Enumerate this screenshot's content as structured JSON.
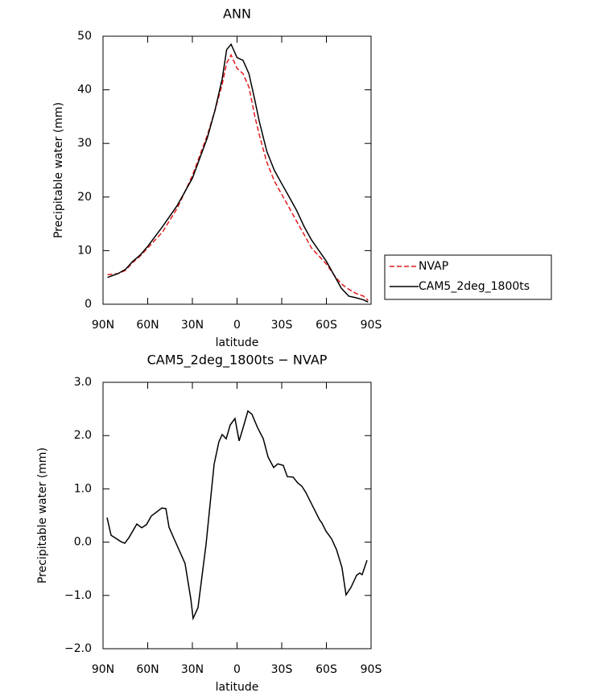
{
  "chart_data": [
    {
      "type": "line",
      "title": "ANN",
      "xlabel": "latitude",
      "ylabel": "Precipitable water (mm)",
      "x": [
        87,
        80,
        75,
        70,
        65,
        60,
        50,
        40,
        30,
        20,
        15,
        10,
        7,
        4,
        0,
        -4,
        -8,
        -12,
        -15,
        -20,
        -25,
        -30,
        -35,
        -40,
        -45,
        -50,
        -55,
        -60,
        -65,
        -70,
        -75,
        -80,
        -85,
        -88
      ],
      "series": [
        {
          "name": "NVAP",
          "color": "#e41a1c",
          "line_style": "dashed",
          "values": [
            5.5,
            5.7,
            6.3,
            7.8,
            9,
            10.5,
            13.5,
            18,
            24,
            31.5,
            36,
            41,
            45,
            46.5,
            44,
            43,
            40.5,
            35,
            31.5,
            26.5,
            23,
            20.5,
            18,
            15.5,
            13,
            10.5,
            9,
            7.5,
            5.5,
            3.8,
            2.8,
            2,
            1.5,
            0.7
          ]
        },
        {
          "name": "CAM5_2deg_1800ts",
          "color": "#000000",
          "line_style": "solid",
          "values": [
            5.0,
            5.7,
            6.5,
            8.0,
            9.2,
            10.8,
            14.5,
            18.5,
            23.5,
            31,
            36,
            42,
            47.5,
            48.5,
            46,
            45.5,
            43,
            38,
            34,
            28.5,
            25,
            22.5,
            20,
            17.5,
            14.5,
            12,
            10,
            8,
            5.5,
            3,
            1.5,
            1.2,
            0.8,
            0.4
          ]
        }
      ],
      "xlim": [
        90,
        -90
      ],
      "xticks": [
        {
          "value": 90,
          "label": "90N"
        },
        {
          "value": 60,
          "label": "60N"
        },
        {
          "value": 30,
          "label": "30N"
        },
        0,
        {
          "value": -30,
          "label": "30S"
        },
        {
          "value": -60,
          "label": "60S"
        },
        {
          "value": -90,
          "label": "90S"
        }
      ],
      "ylim": [
        0,
        50
      ],
      "yticks": [
        0,
        10,
        20,
        30,
        40,
        50
      ],
      "legend": "outside-right"
    },
    {
      "type": "line",
      "title": "CAM5_2deg_1800ts − NVAP",
      "xlabel": "latitude",
      "ylabel": "Precipitable water (mm)",
      "color": "#000000",
      "x": [
        87.3,
        84.6,
        78,
        75.4,
        72.7,
        67.3,
        64,
        60.8,
        57.6,
        50.5,
        47.8,
        45.7,
        42.4,
        34.9,
        31,
        29.5,
        26.2,
        20.8,
        15.4,
        12.2,
        10,
        7.3,
        4.6,
        1.4,
        -1.4,
        -4,
        -7.3,
        -10,
        -13.8,
        -17.6,
        -20.8,
        -24.6,
        -27.3,
        -31,
        -33.8,
        -37.6,
        -40.8,
        -43.5,
        -46.2,
        -51.6,
        -55.4,
        -57,
        -59.7,
        -63.5,
        -66.8,
        -70.5,
        -73.2,
        -76.5,
        -80.3,
        -82.4,
        -84,
        -87.3
      ],
      "values": [
        0.46,
        0.13,
        0.01,
        -0.02,
        0.08,
        0.34,
        0.27,
        0.33,
        0.49,
        0.64,
        0.63,
        0.28,
        0.07,
        -0.4,
        -1.08,
        -1.43,
        -1.23,
        -0.04,
        1.46,
        1.88,
        2.02,
        1.94,
        2.2,
        2.32,
        1.9,
        2.14,
        2.46,
        2.4,
        2.15,
        1.94,
        1.6,
        1.4,
        1.47,
        1.44,
        1.23,
        1.22,
        1.11,
        1.05,
        0.93,
        0.63,
        0.42,
        0.36,
        0.21,
        0.06,
        -0.14,
        -0.48,
        -0.99,
        -0.85,
        -0.62,
        -0.58,
        -0.61,
        -0.34
      ],
      "xlim": [
        90,
        -90
      ],
      "xticks": [
        {
          "value": 90,
          "label": "90N"
        },
        {
          "value": 60,
          "label": "60N"
        },
        {
          "value": 30,
          "label": "30N"
        },
        0,
        {
          "value": -30,
          "label": "30S"
        },
        {
          "value": -60,
          "label": "60S"
        },
        {
          "value": -90,
          "label": "90S"
        }
      ],
      "ylim": [
        -2,
        3
      ],
      "yticks": [
        {
          "value": -2,
          "label": "−2.0"
        },
        {
          "value": -1,
          "label": "−1.0"
        },
        {
          "value": 0,
          "label": "0.0"
        },
        {
          "value": 1,
          "label": "1.0"
        },
        {
          "value": 2,
          "label": "2.0"
        },
        {
          "value": 3,
          "label": "3.0"
        }
      ]
    }
  ]
}
